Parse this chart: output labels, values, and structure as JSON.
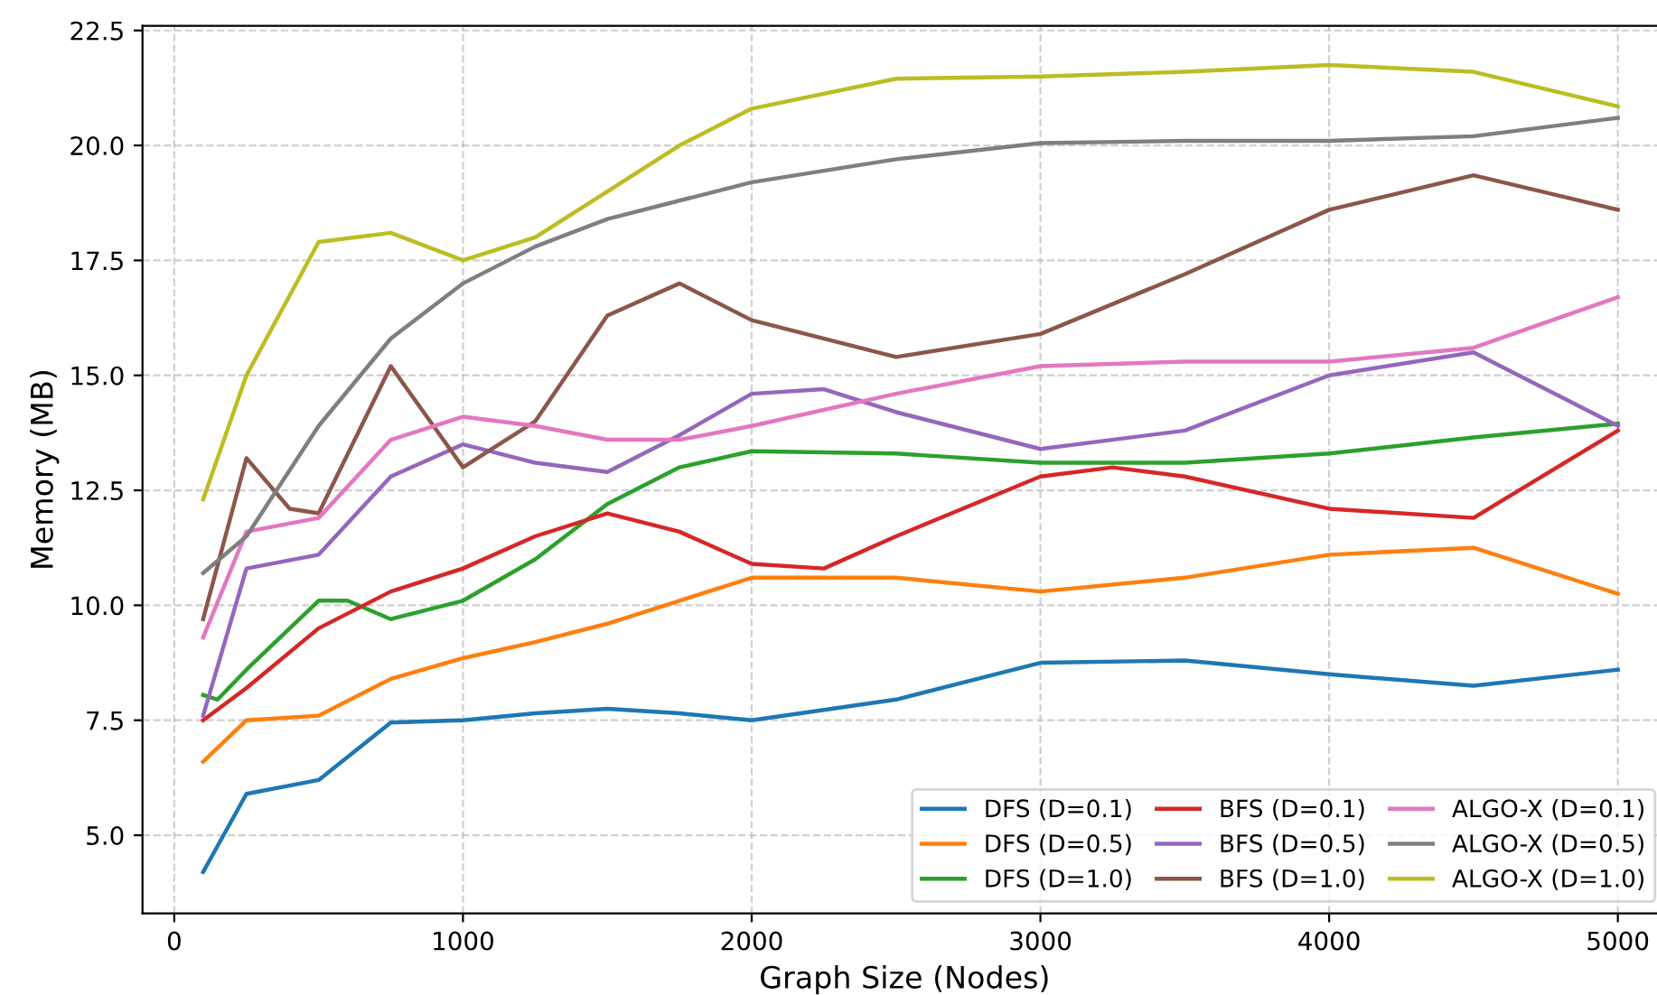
{
  "chart_data": {
    "type": "line",
    "xlabel": "Graph Size (Nodes)",
    "ylabel": "Memory (MB)",
    "xlim": [
      -110,
      5170
    ],
    "ylim": [
      3.3,
      22.6
    ],
    "xticks": [
      0,
      1000,
      2000,
      3000,
      4000,
      5000
    ],
    "yticks": [
      {
        "value": 5,
        "label": "5.0"
      },
      {
        "value": 7.5,
        "label": "7.5"
      },
      {
        "value": 10,
        "label": "10.0"
      },
      {
        "value": 12.5,
        "label": "12.5"
      },
      {
        "value": 15,
        "label": "15.0"
      },
      {
        "value": 17.5,
        "label": "17.5"
      },
      {
        "value": 20,
        "label": "20.0"
      },
      {
        "value": 22.5,
        "label": "22.5"
      }
    ],
    "grid": true,
    "legend": "bottom right",
    "line_style": "solid",
    "series": [
      {
        "name": "DFS (D=0.1)",
        "color": "#1f77b4",
        "x": [
          100,
          250,
          500,
          750,
          1000,
          1250,
          1500,
          1750,
          2000,
          2500,
          3000,
          3500,
          4000,
          4500,
          5000
        ],
        "values": [
          4.2,
          5.9,
          6.2,
          7.45,
          7.5,
          7.65,
          7.75,
          7.65,
          7.5,
          7.95,
          8.75,
          8.8,
          8.5,
          8.25,
          8.6
        ]
      },
      {
        "name": "DFS (D=0.5)",
        "color": "#ff7f0e",
        "x": [
          100,
          250,
          500,
          750,
          1000,
          1250,
          1500,
          1750,
          2000,
          2500,
          3000,
          3500,
          4000,
          4500,
          5000
        ],
        "values": [
          6.6,
          7.5,
          7.6,
          8.4,
          8.85,
          9.2,
          9.6,
          10.1,
          10.6,
          10.6,
          10.3,
          10.6,
          11.1,
          11.25,
          10.25
        ]
      },
      {
        "name": "DFS (D=1.0)",
        "color": "#2ca02c",
        "x": [
          100,
          150,
          250,
          500,
          600,
          750,
          1000,
          1250,
          1500,
          1750,
          2000,
          2500,
          3000,
          3500,
          4000,
          4500,
          5000
        ],
        "values": [
          8.05,
          7.95,
          8.6,
          10.1,
          10.1,
          9.7,
          10.1,
          11.0,
          12.2,
          13.0,
          13.35,
          13.3,
          13.1,
          13.1,
          13.3,
          13.65,
          13.95
        ]
      },
      {
        "name": "BFS (D=0.1)",
        "color": "#d62728",
        "x": [
          100,
          250,
          500,
          750,
          1000,
          1250,
          1500,
          1750,
          2000,
          2250,
          2500,
          3000,
          3250,
          3500,
          4000,
          4500,
          5000
        ],
        "values": [
          7.5,
          8.2,
          9.5,
          10.3,
          10.8,
          11.5,
          12.0,
          11.6,
          10.9,
          10.8,
          11.5,
          12.8,
          13.0,
          12.8,
          12.1,
          11.9,
          13.8
        ]
      },
      {
        "name": "BFS (D=0.5)",
        "color": "#9467bd",
        "x": [
          100,
          250,
          500,
          750,
          1000,
          1250,
          1500,
          1750,
          2000,
          2250,
          2500,
          3000,
          3500,
          4000,
          4500,
          5000
        ],
        "values": [
          7.6,
          10.8,
          11.1,
          12.8,
          13.5,
          13.1,
          12.9,
          13.7,
          14.6,
          14.7,
          14.2,
          13.4,
          13.8,
          15.0,
          15.5,
          13.9
        ]
      },
      {
        "name": "BFS (D=1.0)",
        "color": "#8c564b",
        "x": [
          100,
          250,
          400,
          500,
          750,
          1000,
          1250,
          1500,
          1750,
          2000,
          2500,
          3000,
          3500,
          4000,
          4500,
          5000
        ],
        "values": [
          9.7,
          13.2,
          12.1,
          12.0,
          15.2,
          13.0,
          14.0,
          16.3,
          17.0,
          16.2,
          15.4,
          15.9,
          17.2,
          18.6,
          19.35,
          18.6
        ]
      },
      {
        "name": "ALGO-X (D=0.1)",
        "color": "#e377c2",
        "x": [
          100,
          250,
          500,
          750,
          1000,
          1250,
          1500,
          1750,
          2000,
          2500,
          3000,
          3500,
          4000,
          4500,
          5000
        ],
        "values": [
          9.3,
          11.6,
          11.9,
          13.6,
          14.1,
          13.9,
          13.6,
          13.6,
          13.9,
          14.6,
          15.2,
          15.3,
          15.3,
          15.6,
          16.7
        ]
      },
      {
        "name": "ALGO-X (D=0.5)",
        "color": "#7f7f7f",
        "x": [
          100,
          250,
          500,
          750,
          1000,
          1250,
          1500,
          2000,
          2500,
          3000,
          3500,
          4000,
          4500,
          5000
        ],
        "values": [
          10.7,
          11.5,
          13.9,
          15.8,
          17.0,
          17.8,
          18.4,
          19.2,
          19.7,
          20.05,
          20.1,
          20.1,
          20.2,
          20.6
        ]
      },
      {
        "name": "ALGO-X (D=1.0)",
        "color": "#bcbd22",
        "x": [
          100,
          250,
          500,
          750,
          1000,
          1250,
          1500,
          1750,
          2000,
          2500,
          3000,
          3500,
          4000,
          4500,
          5000
        ],
        "values": [
          12.3,
          15.0,
          17.9,
          18.1,
          17.5,
          18.0,
          19.0,
          20.0,
          20.8,
          21.45,
          21.5,
          21.6,
          21.75,
          21.6,
          20.85
        ]
      }
    ]
  }
}
